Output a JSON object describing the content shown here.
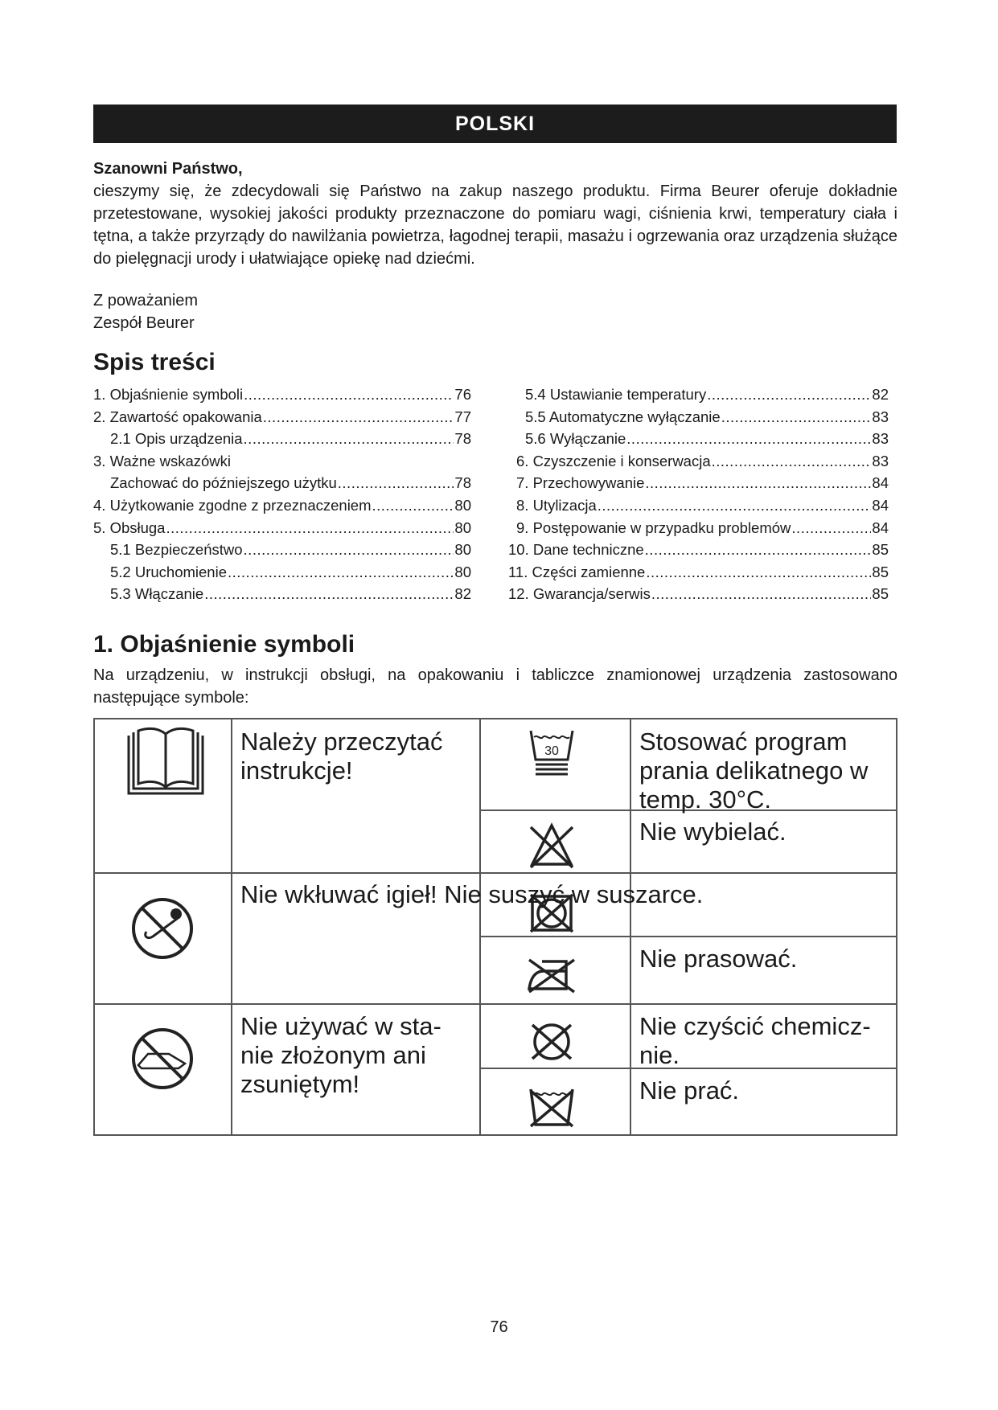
{
  "header": {
    "language": "POLSKI"
  },
  "greeting": {
    "salutation": "Szanowni Państwo,",
    "body": "cieszymy się, że zdecydowali się Państwo na zakup naszego produktu. Firma Beurer oferuje dokładnie przetestowane, wysokiej jakości produkty przeznaczone do pomiaru wagi, ciśnienia krwi, temperatury ciała i tętna, a także przyrządy do nawilżania powietrza, łagodnej terapii, masażu i ogrzewania oraz urządzenia służące do pielęgnacji urody i ułatwiające opiekę nad dziećmi."
  },
  "signature": {
    "line1": "Z poważaniem",
    "line2": "Zespół Beurer"
  },
  "toc": {
    "title": "Spis treści",
    "left": [
      {
        "label": "1. Objaśnienie symboli",
        "page": "76",
        "indent": false
      },
      {
        "label": "2. Zawartość opakowania",
        "page": "77",
        "indent": false
      },
      {
        "label": "2.1 Opis urządzenia",
        "page": "78",
        "indent": true
      },
      {
        "label": "3.  Ważne wskazówki",
        "page": "",
        "indent": false
      },
      {
        "label": "Zachować do późniejszego użytku",
        "page": "78",
        "indent": true
      },
      {
        "label": "4. Użytkowanie zgodne z przeznaczeniem",
        "page": "80",
        "indent": false
      },
      {
        "label": "5. Obsługa",
        "page": "80",
        "indent": false
      },
      {
        "label": "5.1 Bezpieczeństwo",
        "page": "80",
        "indent": true
      },
      {
        "label": "5.2 Uruchomienie",
        "page": "80",
        "indent": true
      },
      {
        "label": "5.3 Włączanie",
        "page": "82",
        "indent": true
      }
    ],
    "right": [
      {
        "label": "5.4 Ustawianie temperatury",
        "page": "82",
        "indent": 2
      },
      {
        "label": "5.5 Automatyczne wyłączanie",
        "page": "83",
        "indent": 2
      },
      {
        "label": "5.6 Wyłączanie",
        "page": "83",
        "indent": 2
      },
      {
        "label": "6. Czyszczenie i konserwacja",
        "page": "83",
        "indent": 1
      },
      {
        "label": "7. Przechowywanie",
        "page": "84",
        "indent": 1
      },
      {
        "label": "8. Utylizacja",
        "page": "84",
        "indent": 1
      },
      {
        "label": "9. Postępowanie w przypadku problemów",
        "page": "84",
        "indent": 1
      },
      {
        "label": "10. Dane techniczne",
        "page": "85",
        "indent": 0
      },
      {
        "label": "11. Części zamienne",
        "page": "85",
        "indent": 0
      },
      {
        "label": "12. Gwarancja/serwis",
        "page": "85",
        "indent": 0
      }
    ]
  },
  "symbols": {
    "title": "1. Objaśnienie symboli",
    "intro": "Na urządzeniu, w instrukcji obsługi, na opakowaniu i tabliczce znamionowej urządzenia zastosowano następujące symbole:",
    "read_instructions": {
      "line1": "Należy przeczytać",
      "line2": "instrukcje!",
      "icon": "book-icon"
    },
    "no_needles": {
      "text": "Nie wkłuwać igieł! Nie suszyć w suszarce.",
      "icon": "no-needles-icon"
    },
    "no_folded": {
      "line1": "Nie używać w sta-",
      "line2": "nie złożonym ani",
      "line3": "zsuniętym!",
      "icon": "no-folded-use-icon"
    },
    "wash30": {
      "line1": "Stosować program",
      "line2": "prania delikatnego w",
      "line3": "temp. 30°C.",
      "icon": "wash-30-gentle-icon",
      "tub_label": "30"
    },
    "no_bleach": {
      "text": "Nie wybielać.",
      "icon": "no-bleach-icon"
    },
    "no_tumble": {
      "icon": "no-tumble-dry-icon"
    },
    "no_iron": {
      "text": "Nie prasować.",
      "icon": "no-iron-icon"
    },
    "no_dryclean": {
      "line1": "Nie czyścić chemicz-",
      "line2": "nie.",
      "icon": "no-dry-clean-icon"
    },
    "no_wash": {
      "text": "Nie prać.",
      "icon": "no-wash-icon"
    }
  },
  "footer": {
    "page_number": "76"
  }
}
